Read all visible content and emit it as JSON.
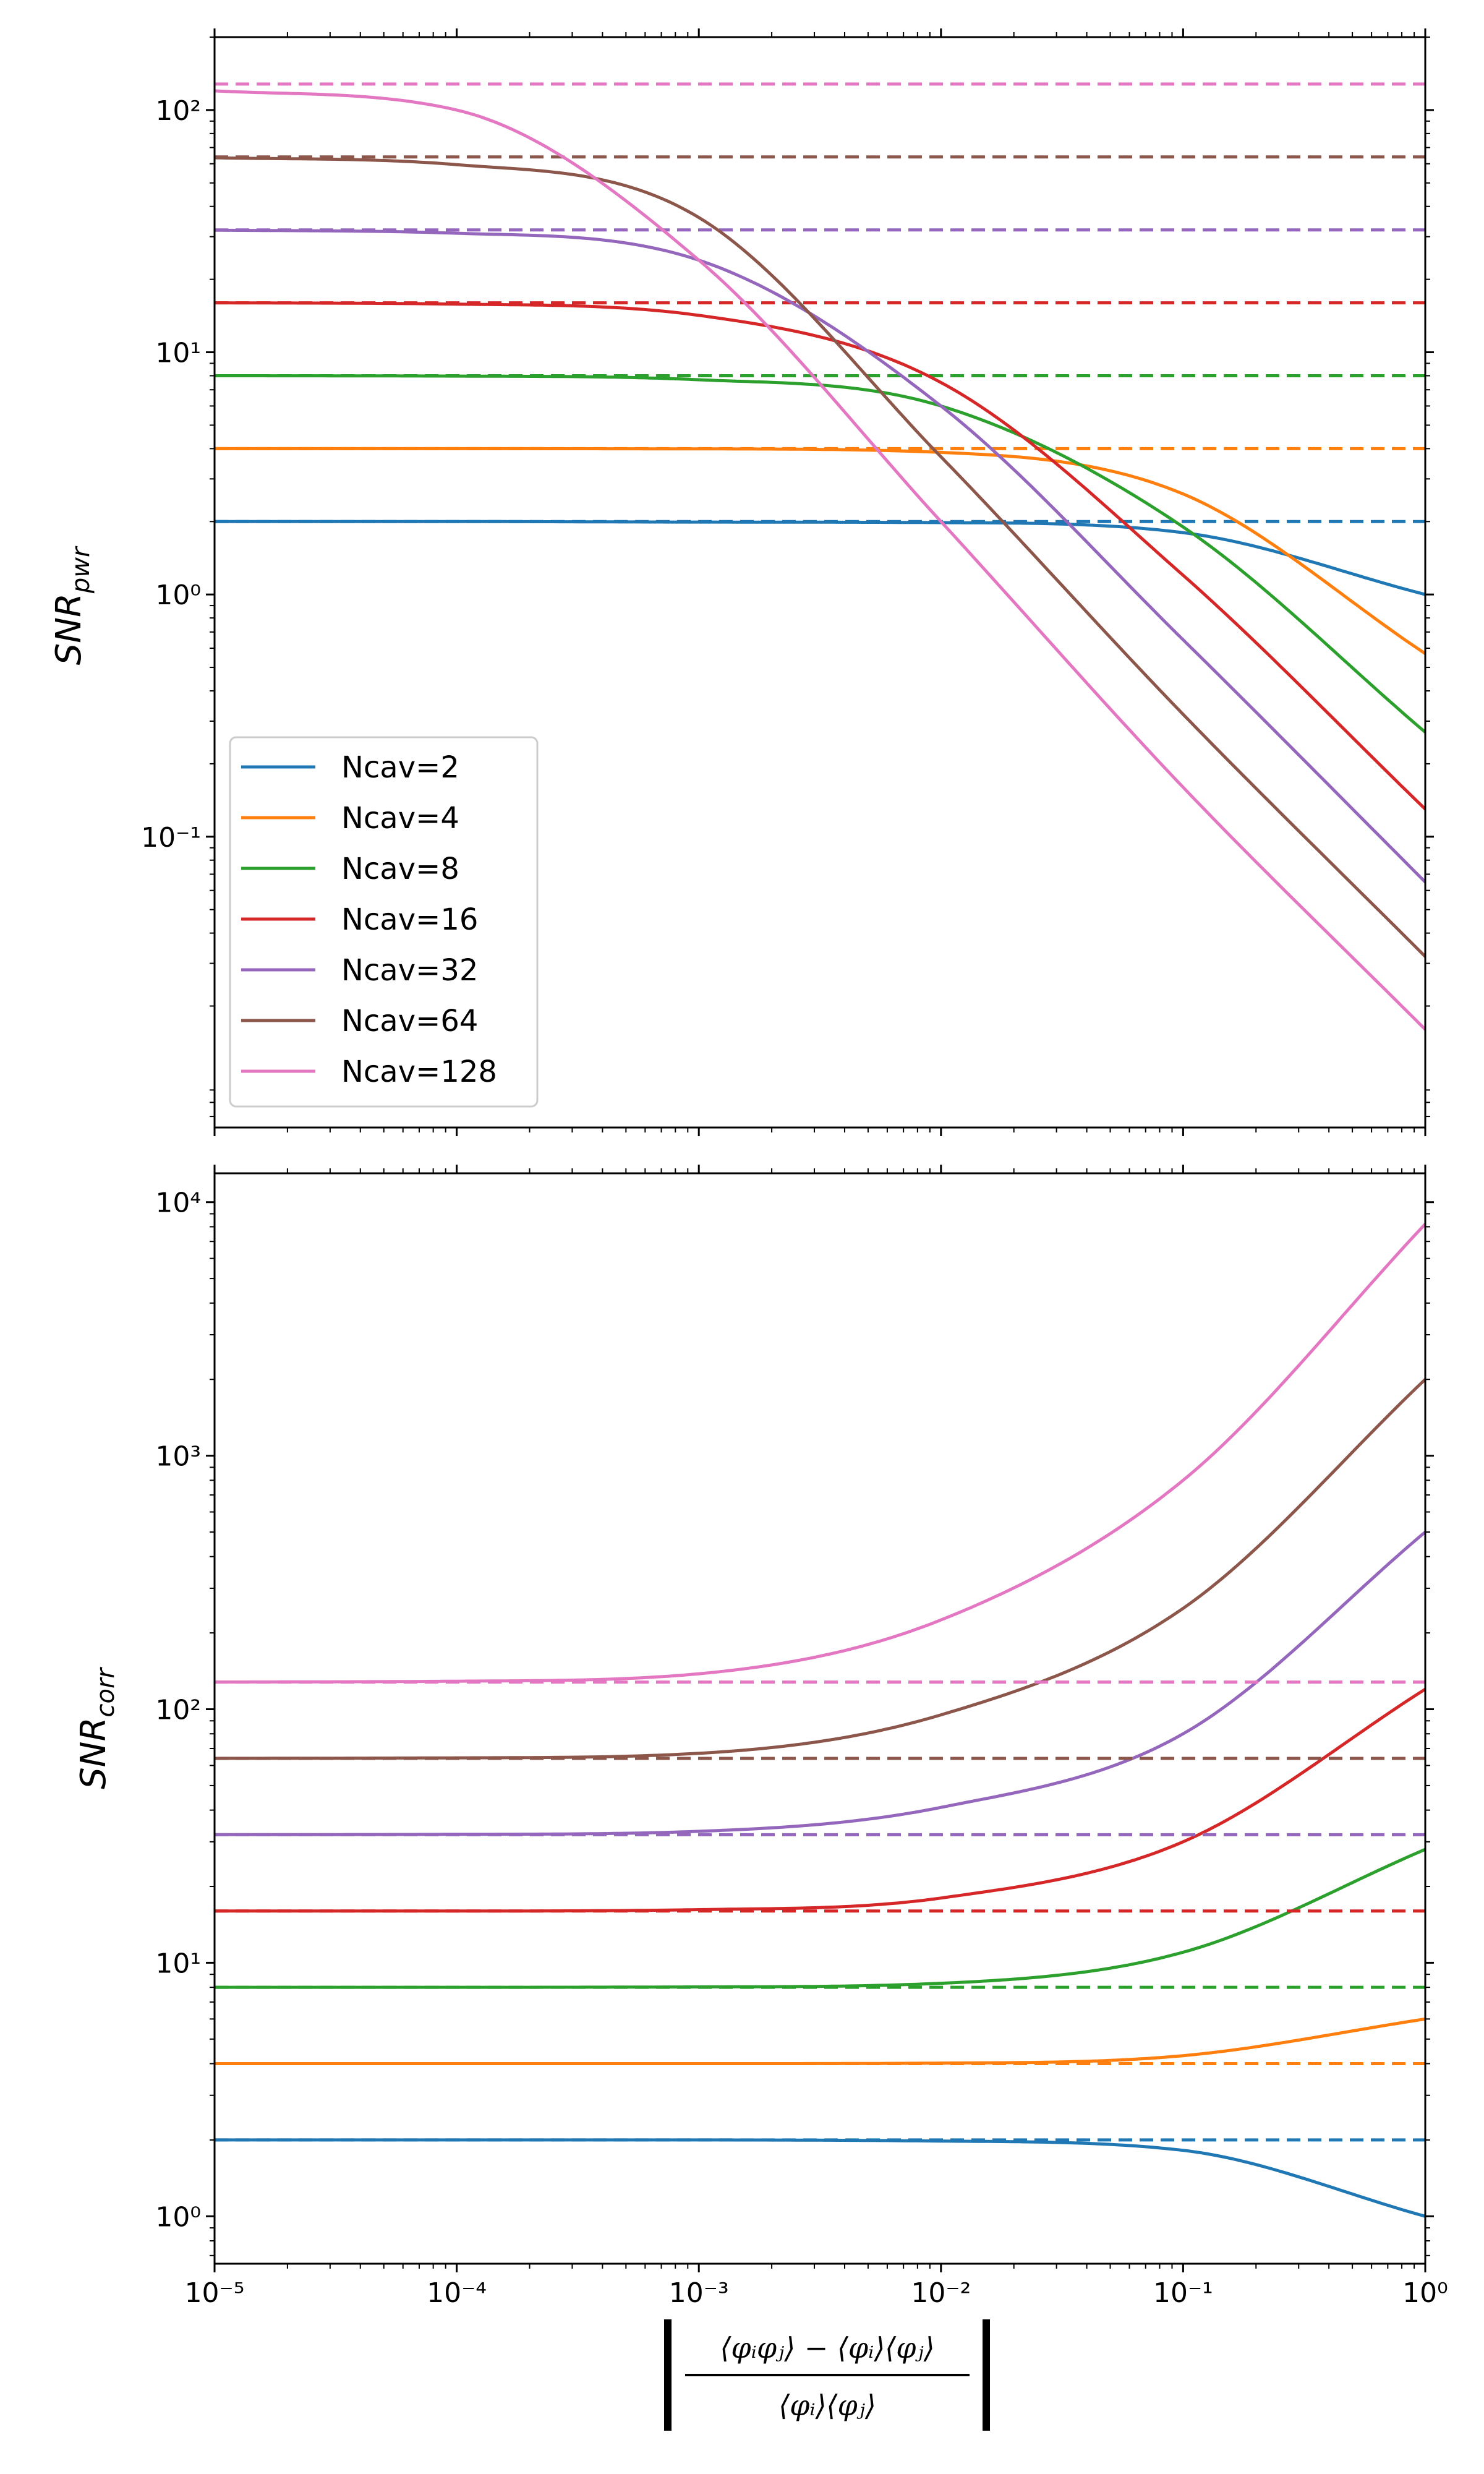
{
  "chart_data": [
    {
      "type": "line",
      "ylabel": "SNR",
      "ylabel_sub": "pwr",
      "xscale": "log",
      "yscale": "log",
      "xlim": [
        1e-05,
        1
      ],
      "ylim": [
        0.0063,
        200
      ],
      "x_ticks": [
        "10⁻⁵",
        "10⁻⁴",
        "10⁻³",
        "10⁻²",
        "10⁻¹",
        "10⁰"
      ],
      "y_ticks": [
        {
          "value": 0.1,
          "label": "10⁻¹"
        },
        {
          "value": 1,
          "label": "10⁰"
        },
        {
          "value": 10,
          "label": "10¹"
        },
        {
          "value": 100,
          "label": "10²"
        }
      ],
      "grid": false,
      "legend_placement": "lower-left",
      "note": "solid = SNR curve, dashed = asymptote at Ncav value",
      "series": [
        {
          "name": "Ncav=2",
          "color": "#1f77b4",
          "ncav": 2,
          "points": [
            [
              1e-05,
              2.0
            ],
            [
              0.0001,
              2.0
            ],
            [
              0.001,
              1.99
            ],
            [
              0.01,
              1.98
            ],
            [
              0.1,
              1.8
            ],
            [
              1,
              1.0
            ]
          ]
        },
        {
          "name": "Ncav=4",
          "color": "#ff7f0e",
          "ncav": 4,
          "points": [
            [
              1e-05,
              4.0
            ],
            [
              0.0001,
              4.0
            ],
            [
              0.001,
              3.99
            ],
            [
              0.01,
              3.86
            ],
            [
              0.1,
              2.6
            ],
            [
              1,
              0.57
            ]
          ]
        },
        {
          "name": "Ncav=8",
          "color": "#2ca02c",
          "ncav": 8,
          "points": [
            [
              1e-05,
              8.0
            ],
            [
              0.0001,
              7.97
            ],
            [
              0.001,
              7.7
            ],
            [
              0.01,
              6.0
            ],
            [
              0.1,
              1.9
            ],
            [
              1,
              0.27
            ]
          ]
        },
        {
          "name": "Ncav=16",
          "color": "#d62728",
          "ncav": 16,
          "points": [
            [
              1e-05,
              16.0
            ],
            [
              0.0001,
              15.8
            ],
            [
              0.001,
              14.2
            ],
            [
              0.01,
              7.5
            ],
            [
              0.1,
              1.2
            ],
            [
              1,
              0.13
            ]
          ]
        },
        {
          "name": "Ncav=32",
          "color": "#9467bd",
          "ncav": 32,
          "points": [
            [
              1e-05,
              31.9
            ],
            [
              0.0001,
              31.0
            ],
            [
              0.001,
              24.0
            ],
            [
              0.01,
              6.0
            ],
            [
              0.1,
              0.65
            ],
            [
              1,
              0.065
            ]
          ]
        },
        {
          "name": "Ncav=64",
          "color": "#8c564b",
          "ncav": 64,
          "points": [
            [
              1e-05,
              63.5
            ],
            [
              0.0001,
              59.5
            ],
            [
              0.001,
              36.0
            ],
            [
              0.01,
              3.7
            ],
            [
              0.1,
              0.32
            ],
            [
              1,
              0.032
            ]
          ]
        },
        {
          "name": "Ncav=128",
          "color": "#e377c2",
          "ncav": 128,
          "points": [
            [
              1e-05,
              120.0
            ],
            [
              0.0001,
              100.0
            ],
            [
              0.001,
              24.0
            ],
            [
              0.01,
              2.0
            ],
            [
              0.1,
              0.16
            ],
            [
              1,
              0.016
            ]
          ]
        }
      ]
    },
    {
      "type": "line",
      "ylabel": "SNR",
      "ylabel_sub": "corr",
      "xlabel": "|(⟨φᵢφⱼ⟩ − ⟨φᵢ⟩⟨φⱼ⟩) / (⟨φᵢ⟩⟨φⱼ⟩)|",
      "xlabel_num": "⟨φᵢφⱼ⟩ − ⟨φᵢ⟩⟨φⱼ⟩",
      "xlabel_den": "⟨φᵢ⟩⟨φⱼ⟩",
      "xscale": "log",
      "yscale": "log",
      "xlim": [
        1e-05,
        1
      ],
      "ylim": [
        0.65,
        13000
      ],
      "x_ticks": [
        "10⁻⁵",
        "10⁻⁴",
        "10⁻³",
        "10⁻²",
        "10⁻¹",
        "10⁰"
      ],
      "y_ticks": [
        {
          "value": 1,
          "label": "10⁰"
        },
        {
          "value": 10,
          "label": "10¹"
        },
        {
          "value": 100,
          "label": "10²"
        },
        {
          "value": 1000,
          "label": "10³"
        },
        {
          "value": 10000,
          "label": "10⁴"
        }
      ],
      "grid": false,
      "series": [
        {
          "color": "#1f77b4",
          "ncav": 2,
          "points": [
            [
              1e-05,
              2.0
            ],
            [
              0.0001,
              2.0
            ],
            [
              0.001,
              2.0
            ],
            [
              0.01,
              1.98
            ],
            [
              0.1,
              1.82
            ],
            [
              1,
              1.0
            ]
          ]
        },
        {
          "color": "#ff7f0e",
          "ncav": 4,
          "points": [
            [
              1e-05,
              4.0
            ],
            [
              0.0001,
              4.0
            ],
            [
              0.001,
              4.0
            ],
            [
              0.01,
              4.02
            ],
            [
              0.1,
              4.3
            ],
            [
              1,
              6.0
            ]
          ]
        },
        {
          "color": "#2ca02c",
          "ncav": 8,
          "points": [
            [
              1e-05,
              8.0
            ],
            [
              0.0001,
              8.0
            ],
            [
              0.001,
              8.03
            ],
            [
              0.01,
              8.3
            ],
            [
              0.1,
              11.0
            ],
            [
              1,
              28.0
            ]
          ]
        },
        {
          "color": "#d62728",
          "ncav": 16,
          "points": [
            [
              1e-05,
              16.0
            ],
            [
              0.0001,
              16.0
            ],
            [
              0.001,
              16.2
            ],
            [
              0.01,
              18.0
            ],
            [
              0.1,
              30.0
            ],
            [
              1,
              120.0
            ]
          ]
        },
        {
          "color": "#9467bd",
          "ncav": 32,
          "points": [
            [
              1e-05,
              32.0
            ],
            [
              0.0001,
              32.1
            ],
            [
              0.001,
              33.0
            ],
            [
              0.01,
              41.0
            ],
            [
              0.1,
              80.0
            ],
            [
              1,
              500.0
            ]
          ]
        },
        {
          "color": "#8c564b",
          "ncav": 64,
          "points": [
            [
              1e-05,
              64.0
            ],
            [
              0.0001,
              64.3
            ],
            [
              0.001,
              67.0
            ],
            [
              0.01,
              95.0
            ],
            [
              0.1,
              250.0
            ],
            [
              1,
              2000.0
            ]
          ]
        },
        {
          "color": "#e377c2",
          "ncav": 128,
          "points": [
            [
              1e-05,
              128.0
            ],
            [
              0.0001,
              129.0
            ],
            [
              0.001,
              138.0
            ],
            [
              0.01,
              225.0
            ],
            [
              0.1,
              800.0
            ],
            [
              1,
              8200.0
            ]
          ]
        }
      ]
    }
  ]
}
